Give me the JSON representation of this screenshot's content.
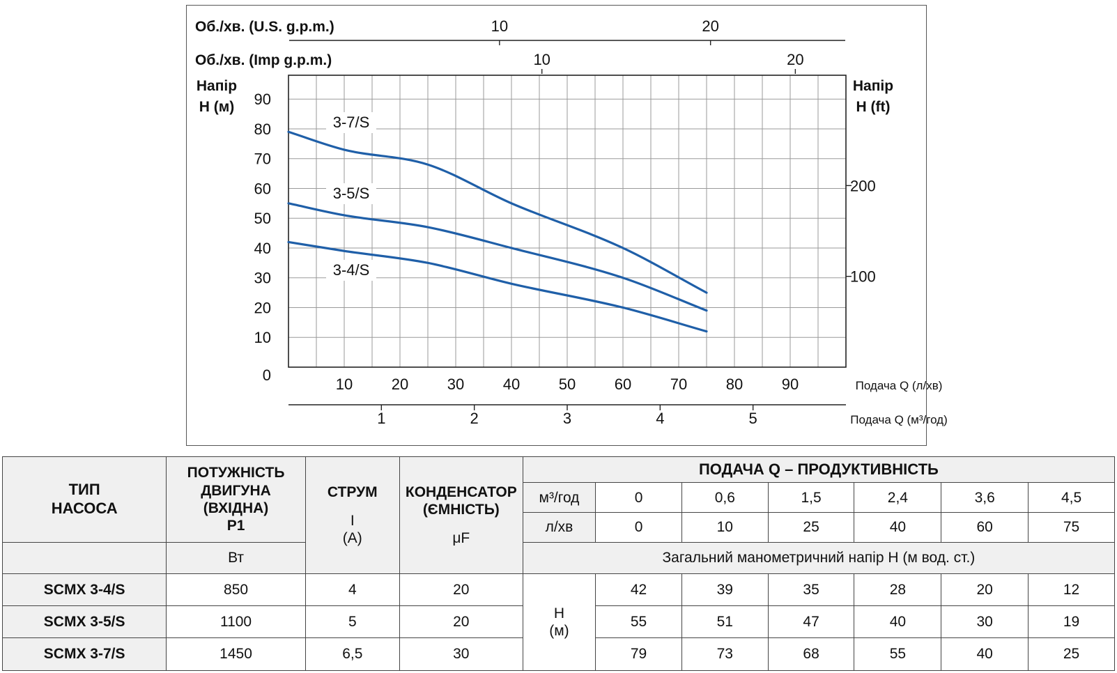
{
  "chart_data": {
    "type": "line",
    "x_unit_label": "Подача Q (л/хв)",
    "x2_unit_label": "Подача Q (м³/год)",
    "top_axis_usgpm_label": "Об./хв. (U.S. g.p.m.)",
    "top_axis_impgpm_label": "Об./хв. (Imp g.p.m.)",
    "ylabel_left": [
      "Напір",
      "H (м)"
    ],
    "ylabel_right": [
      "Напір",
      "H (ft)"
    ],
    "xlim": [
      0,
      100
    ],
    "ylim": [
      0,
      98
    ],
    "grid": true,
    "x_ticks": [
      10,
      20,
      30,
      40,
      50,
      60,
      70,
      80,
      90
    ],
    "y_ticks": [
      0,
      10,
      20,
      30,
      40,
      50,
      60,
      70,
      80,
      90
    ],
    "m3h_ticks": [
      1,
      2,
      3,
      4,
      5
    ],
    "usgpm_ticks": [
      10,
      20
    ],
    "impgpm_ticks": [
      10,
      20
    ],
    "ft_ticks": [
      100,
      200
    ],
    "line_color": "#1f5fa8",
    "series": [
      {
        "name": "3-7/S",
        "x": [
          0,
          10,
          25,
          40,
          60,
          75
        ],
        "y": [
          79,
          73,
          68,
          55,
          40,
          25
        ]
      },
      {
        "name": "3-5/S",
        "x": [
          0,
          10,
          25,
          40,
          60,
          75
        ],
        "y": [
          55,
          51,
          47,
          40,
          30,
          19
        ]
      },
      {
        "name": "3-4/S",
        "x": [
          0,
          10,
          25,
          40,
          60,
          75
        ],
        "y": [
          42,
          39,
          35,
          28,
          20,
          12
        ]
      }
    ]
  },
  "table": {
    "type_header": [
      "ТИП",
      "НАСОСА"
    ],
    "power_header": [
      "ПОТУЖНІСТЬ",
      "ДВИГУНА",
      "(ВХІДНА)",
      "P1"
    ],
    "power_unit": "Вт",
    "current_header": "СТРУМ",
    "current_symbol": "I",
    "current_unit": "(A)",
    "cap_header": [
      "КОНДЕНСАТОР",
      "(ЄМНІСТЬ)"
    ],
    "cap_unit": "μF",
    "flow_header": "ПОДАЧА Q – ПРОДУКТИВНІСТЬ",
    "m3h_label": "м³/год",
    "m3h_values": [
      "0",
      "0,6",
      "1,5",
      "2,4",
      "3,6",
      "4,5"
    ],
    "lmin_label": "л/хв",
    "lmin_values": [
      "0",
      "10",
      "25",
      "40",
      "60",
      "75"
    ],
    "head_caption": "Загальний манометричний напір H (м вод. ст.)",
    "head_symbol": "H",
    "head_unit": "(м)",
    "rows": [
      {
        "pump": "SCMX 3-4/S",
        "power": "850",
        "current": "4",
        "cap": "20",
        "heads": [
          "42",
          "39",
          "35",
          "28",
          "20",
          "12"
        ]
      },
      {
        "pump": "SCMX 3-5/S",
        "power": "1100",
        "current": "5",
        "cap": "20",
        "heads": [
          "55",
          "51",
          "47",
          "40",
          "30",
          "19"
        ]
      },
      {
        "pump": "SCMX 3-7/S",
        "power": "1450",
        "current": "6,5",
        "cap": "30",
        "heads": [
          "79",
          "73",
          "68",
          "55",
          "40",
          "25"
        ]
      }
    ]
  }
}
